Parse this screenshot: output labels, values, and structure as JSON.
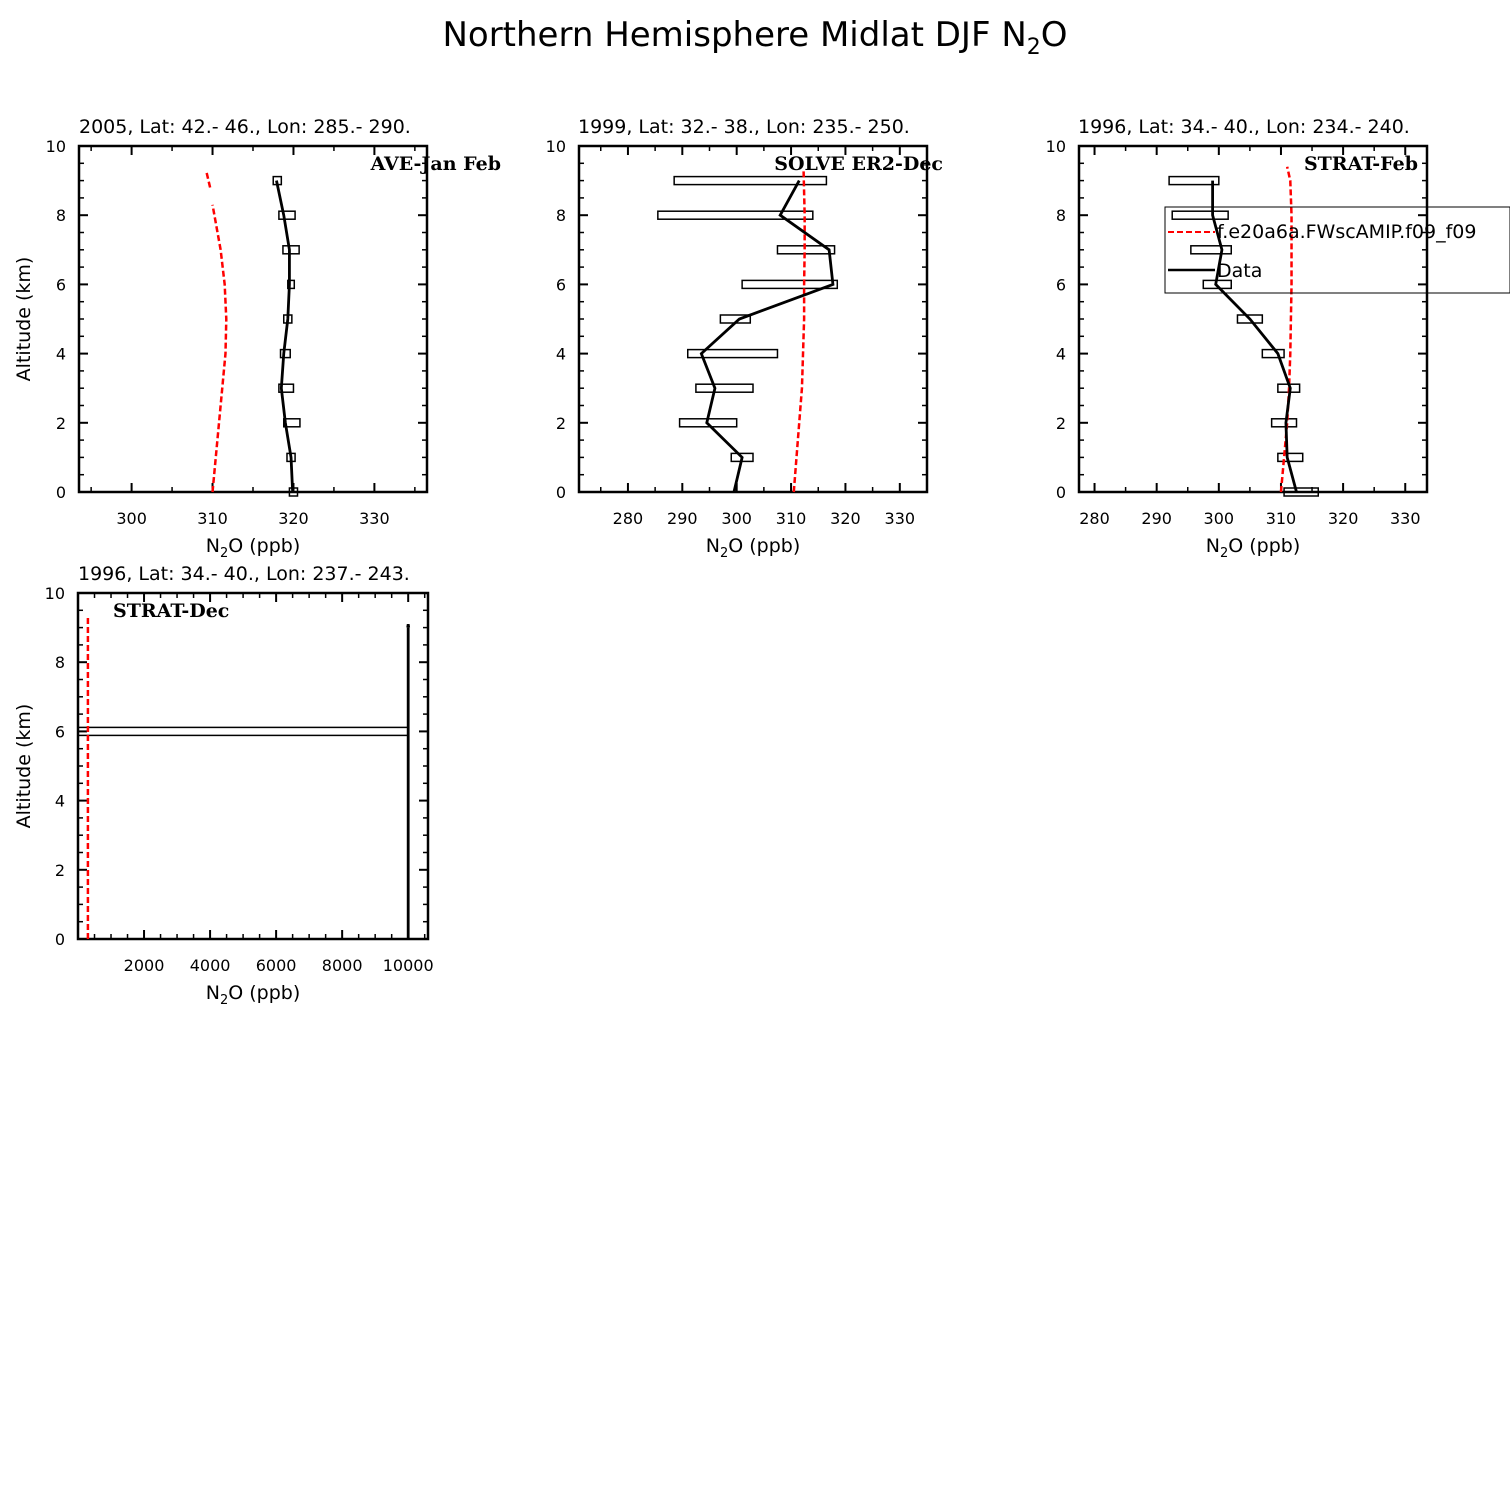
{
  "figure": {
    "title_prefix": "Northern Hemisphere Midlat DJF N",
    "title_sub": "2",
    "title_suffix": "O"
  },
  "legend": {
    "model_label": "f.e20a6a.FWscAMIP.f09_f09",
    "data_label": "Data",
    "model_color": "#ff0000",
    "data_color": "#000000"
  },
  "chart_data": [
    {
      "type": "line",
      "subtitle": "2005, Lat: 42.- 46., Lon: 285.- 290.",
      "campaign": "AVE-Jan Feb",
      "xlabel_prefix": "N",
      "xlabel_sub": "2",
      "xlabel_suffix": "O (ppb)",
      "ylabel": "Altitude (km)",
      "xlim": [
        293.5,
        336.5
      ],
      "ylim": [
        0,
        10
      ],
      "xticks": [
        300,
        310,
        320,
        330
      ],
      "xminor": 2,
      "yticks": [
        0,
        2,
        4,
        6,
        8,
        10
      ],
      "model": {
        "x": [
          310,
          310.4,
          310.8,
          311.2,
          311.6,
          311.7,
          311.5,
          311,
          310
        ],
        "y": [
          0,
          1,
          2,
          3,
          4,
          5,
          6,
          7,
          8.3
        ]
      },
      "model_tail": {
        "x": [
          309.7,
          309.2
        ],
        "y": [
          8.8,
          9.3
        ]
      },
      "data": {
        "x": [
          319.9,
          319.7,
          319.0,
          318.5,
          318.8,
          319.3,
          319.5,
          319.5,
          318.8,
          317.9
        ],
        "y": [
          0,
          1,
          2,
          3,
          4,
          5,
          6,
          7,
          8,
          9
        ]
      },
      "bars": [
        {
          "y": 0,
          "x1": 319.5,
          "x2": 320.5
        },
        {
          "y": 1,
          "x1": 319.2,
          "x2": 320.2
        },
        {
          "y": 2,
          "x1": 318.8,
          "x2": 320.8
        },
        {
          "y": 3,
          "x1": 318.2,
          "x2": 320.0
        },
        {
          "y": 4,
          "x1": 318.4,
          "x2": 319.6
        },
        {
          "y": 5,
          "x1": 318.8,
          "x2": 319.8
        },
        {
          "y": 6,
          "x1": 319.3,
          "x2": 320.1
        },
        {
          "y": 7,
          "x1": 318.7,
          "x2": 320.7
        },
        {
          "y": 8,
          "x1": 318.2,
          "x2": 320.2
        },
        {
          "y": 9,
          "x1": 317.5,
          "x2": 318.5
        }
      ]
    },
    {
      "type": "line",
      "subtitle": "1999, Lat: 32.- 38., Lon: 235.- 250.",
      "campaign": "SOLVE ER2-Dec",
      "xlabel_prefix": "N",
      "xlabel_sub": "2",
      "xlabel_suffix": "O (ppb)",
      "ylabel": "Altitude (km)",
      "xlim": [
        271,
        335
      ],
      "ylim": [
        0,
        10
      ],
      "xticks": [
        280,
        290,
        300,
        310,
        320,
        330
      ],
      "xminor": 2,
      "yticks": [
        0,
        2,
        4,
        6,
        8,
        10
      ],
      "model": {
        "x": [
          310.5,
          311,
          311.5,
          312,
          312.2,
          312.4,
          312.4,
          312.5,
          312.5,
          312.3
        ],
        "y": [
          0,
          1,
          2,
          3,
          4,
          5,
          6,
          7,
          8,
          9.3
        ]
      },
      "data": {
        "x": [
          299.5,
          301,
          294.5,
          296,
          293.5,
          300.5,
          317.7,
          317,
          308,
          311.5
        ],
        "y": [
          0,
          1,
          2,
          3,
          4,
          5,
          6,
          7,
          8,
          9
        ]
      },
      "bars": [
        {
          "y": 1,
          "x1": 299.0,
          "x2": 303.0
        },
        {
          "y": 2,
          "x1": 289.5,
          "x2": 300.0
        },
        {
          "y": 3,
          "x1": 292.5,
          "x2": 303.0
        },
        {
          "y": 4,
          "x1": 291.0,
          "x2": 307.5
        },
        {
          "y": 5,
          "x1": 297.0,
          "x2": 302.5
        },
        {
          "y": 6,
          "x1": 301.0,
          "x2": 318.5
        },
        {
          "y": 7,
          "x1": 307.5,
          "x2": 318.0
        },
        {
          "y": 8,
          "x1": 285.5,
          "x2": 314.0
        },
        {
          "y": 9,
          "x1": 288.5,
          "x2": 316.5
        }
      ]
    },
    {
      "type": "line",
      "subtitle": "1996, Lat: 34.- 40., Lon: 234.- 240.",
      "campaign": "STRAT-Feb",
      "xlabel_prefix": "N",
      "xlabel_sub": "2",
      "xlabel_suffix": "O (ppb)",
      "ylabel": "Altitude (km)",
      "xlim": [
        277.5,
        333.5
      ],
      "ylim": [
        0,
        10
      ],
      "xticks": [
        280,
        290,
        300,
        310,
        320,
        330
      ],
      "xminor": 2,
      "yticks": [
        0,
        2,
        4,
        6,
        8,
        10
      ],
      "model": {
        "x": [
          310,
          310.5,
          311,
          311.3,
          311.5,
          311.6,
          311.7,
          311.7,
          311.7,
          311.5,
          311
        ],
        "y": [
          0,
          1,
          2,
          3,
          4,
          5,
          6,
          7,
          8,
          9,
          9.4
        ]
      },
      "data": {
        "x": [
          312.5,
          311,
          310.8,
          311.5,
          309.5,
          305,
          299.5,
          300.5,
          299,
          299
        ],
        "y": [
          0,
          1,
          2,
          3,
          4,
          5,
          6,
          7,
          8,
          9
        ]
      },
      "bars": [
        {
          "y": 0,
          "x1": 310.5,
          "x2": 316.0
        },
        {
          "y": 1,
          "x1": 309.5,
          "x2": 313.5
        },
        {
          "y": 2,
          "x1": 308.5,
          "x2": 312.5
        },
        {
          "y": 3,
          "x1": 309.5,
          "x2": 313.0
        },
        {
          "y": 4,
          "x1": 307.0,
          "x2": 310.5
        },
        {
          "y": 5,
          "x1": 303.0,
          "x2": 307.0
        },
        {
          "y": 6,
          "x1": 297.5,
          "x2": 302.0
        },
        {
          "y": 7,
          "x1": 295.5,
          "x2": 302.0
        },
        {
          "y": 8,
          "x1": 292.5,
          "x2": 301.5
        },
        {
          "y": 9,
          "x1": 292.0,
          "x2": 300.0
        }
      ]
    },
    {
      "type": "line",
      "subtitle": "1996, Lat: 34.- 40., Lon: 237.- 243.",
      "campaign": "STRAT-Dec",
      "xlabel_prefix": "N",
      "xlabel_sub": "2",
      "xlabel_suffix": "O (ppb)",
      "ylabel": "Altitude (km)",
      "xlim": [
        0,
        10600
      ],
      "ylim": [
        0,
        10
      ],
      "xticks": [
        2000,
        4000,
        6000,
        8000,
        10000
      ],
      "xminor": 4,
      "yticks": [
        0,
        2,
        4,
        6,
        8,
        10
      ],
      "model": {
        "x": [
          300,
          300,
          300,
          300,
          300,
          300,
          300
        ],
        "y": [
          0,
          2,
          4,
          6,
          8,
          9,
          9.3
        ]
      },
      "data": {
        "x": [
          10000,
          10000,
          10000,
          10000,
          10000,
          10000,
          10000,
          10000,
          10000,
          10000
        ],
        "y": [
          0,
          1,
          2,
          3,
          4,
          5,
          6,
          7,
          8,
          9
        ]
      },
      "data_tip": {
        "x": [
          9985,
          10000,
          10015
        ],
        "y": [
          9.0,
          9.1,
          9.0
        ]
      },
      "bars": [
        {
          "y": 6,
          "x1": 0,
          "x2": 10000
        }
      ]
    }
  ]
}
